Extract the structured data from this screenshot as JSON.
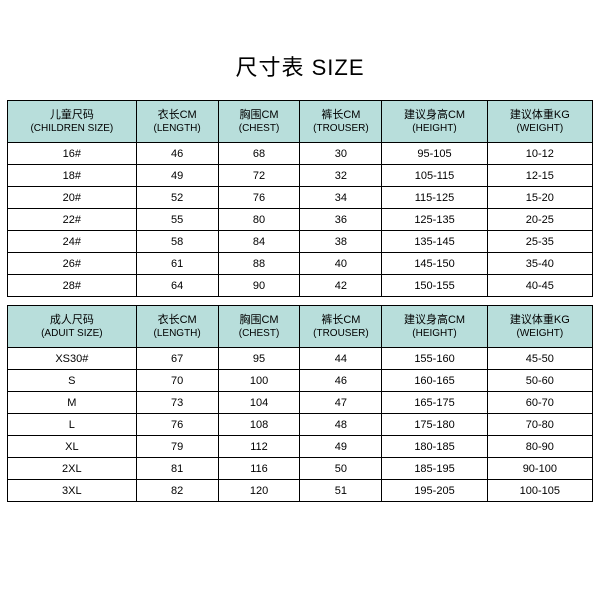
{
  "title": "尺寸表 SIZE",
  "header_bg": "#b8dedb",
  "columns": [
    {
      "cn": "儿童尺码",
      "en": "(CHILDREN SIZE)"
    },
    {
      "cn": "衣长CM",
      "en": "(LENGTH)"
    },
    {
      "cn": "胸围CM",
      "en": "(CHEST)"
    },
    {
      "cn": "裤长CM",
      "en": "(TROUSER)"
    },
    {
      "cn": "建议身高CM",
      "en": "(HEIGHT)"
    },
    {
      "cn": "建议体重KG",
      "en": "(WEIGHT)"
    }
  ],
  "children_rows": [
    [
      "16#",
      "46",
      "68",
      "30",
      "95-105",
      "10-12"
    ],
    [
      "18#",
      "49",
      "72",
      "32",
      "105-115",
      "12-15"
    ],
    [
      "20#",
      "52",
      "76",
      "34",
      "115-125",
      "15-20"
    ],
    [
      "22#",
      "55",
      "80",
      "36",
      "125-135",
      "20-25"
    ],
    [
      "24#",
      "58",
      "84",
      "38",
      "135-145",
      "25-35"
    ],
    [
      "26#",
      "61",
      "88",
      "40",
      "145-150",
      "35-40"
    ],
    [
      "28#",
      "64",
      "90",
      "42",
      "150-155",
      "40-45"
    ]
  ],
  "adult_columns": [
    {
      "cn": "成人尺码",
      "en": "(ADUIT SIZE)"
    },
    {
      "cn": "衣长CM",
      "en": "(LENGTH)"
    },
    {
      "cn": "胸围CM",
      "en": "(CHEST)"
    },
    {
      "cn": "裤长CM",
      "en": "(TROUSER)"
    },
    {
      "cn": "建议身高CM",
      "en": "(HEIGHT)"
    },
    {
      "cn": "建议体重KG",
      "en": "(WEIGHT)"
    }
  ],
  "adult_rows": [
    [
      "XS30#",
      "67",
      "95",
      "44",
      "155-160",
      "45-50"
    ],
    [
      "S",
      "70",
      "100",
      "46",
      "160-165",
      "50-60"
    ],
    [
      "M",
      "73",
      "104",
      "47",
      "165-175",
      "60-70"
    ],
    [
      "L",
      "76",
      "108",
      "48",
      "175-180",
      "70-80"
    ],
    [
      "XL",
      "79",
      "112",
      "49",
      "180-185",
      "80-90"
    ],
    [
      "2XL",
      "81",
      "116",
      "50",
      "185-195",
      "90-100"
    ],
    [
      "3XL",
      "82",
      "120",
      "51",
      "195-205",
      "100-105"
    ]
  ],
  "col_widths": [
    "22%",
    "14%",
    "14%",
    "14%",
    "18%",
    "18%"
  ]
}
